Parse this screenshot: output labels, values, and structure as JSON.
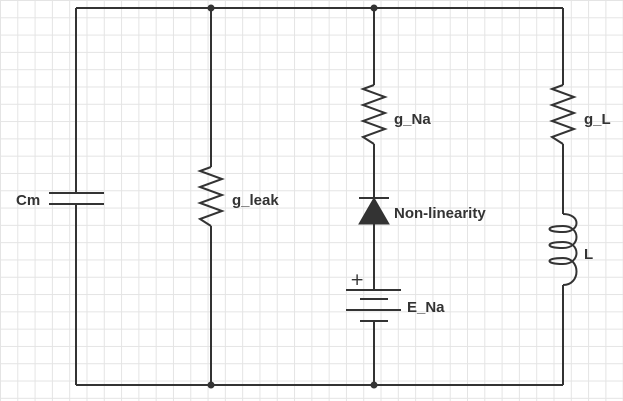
{
  "diagram": {
    "components": {
      "capacitor": {
        "label": "Cm",
        "type": "capacitor"
      },
      "leak_resistor": {
        "label": "g_leak",
        "type": "resistor"
      },
      "na_resistor": {
        "label": "g_Na",
        "type": "resistor"
      },
      "diode": {
        "label": "Non-linearity",
        "type": "diode"
      },
      "battery": {
        "label": "E_Na",
        "polarity": "+",
        "type": "battery"
      },
      "l_resistor": {
        "label": "g_L",
        "type": "resistor"
      },
      "inductor": {
        "label": "L",
        "type": "inductor"
      }
    },
    "connections": [
      [
        "capacitor",
        "leak_resistor"
      ],
      [
        "leak_resistor",
        "na_resistor"
      ],
      [
        "na_resistor",
        "diode"
      ],
      [
        "diode",
        "battery"
      ],
      [
        "na_resistor",
        "l_resistor"
      ],
      [
        "l_resistor",
        "inductor"
      ]
    ],
    "colors": {
      "wire": "#333333",
      "grid": "#e4e4e4",
      "background": "#ffffff"
    }
  }
}
